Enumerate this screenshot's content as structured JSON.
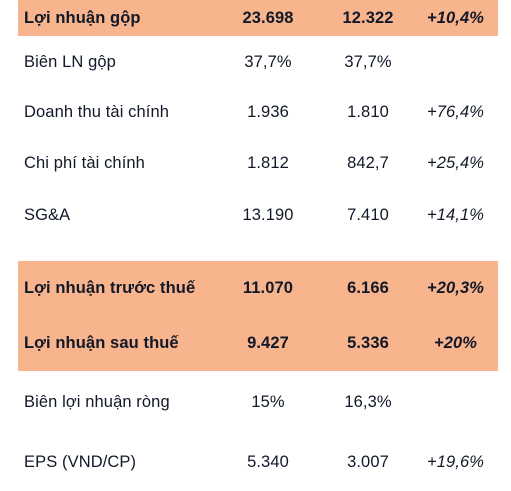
{
  "rows": [
    {
      "label": "Lợi nhuận gộp",
      "v1": "23.698",
      "v2": "12.322",
      "chg": "+10,4%",
      "highlight": true
    },
    {
      "label": "Biên LN gộp",
      "v1": "37,7%",
      "v2": "37,7%",
      "chg": "",
      "highlight": false
    },
    {
      "label": "Doanh thu tài chính",
      "v1": "1.936",
      "v2": "1.810",
      "chg": "+76,4%",
      "highlight": false
    },
    {
      "label": "Chi phí tài chính",
      "v1": "1.812",
      "v2": "842,7",
      "chg": "+25,4%",
      "highlight": false
    },
    {
      "label": "SG&A",
      "v1": "13.190",
      "v2": "7.410",
      "chg": "+14,1%",
      "highlight": false
    },
    {
      "label": "Lợi nhuận trước thuế",
      "v1": "11.070",
      "v2": "6.166",
      "chg": "+20,3%",
      "highlight": true
    },
    {
      "label": "Lợi nhuận sau thuế",
      "v1": "9.427",
      "v2": "5.336",
      "chg": "+20%",
      "highlight": true
    },
    {
      "label": "Biên lợi nhuận ròng",
      "v1": "15%",
      "v2": "16,3%",
      "chg": "",
      "highlight": false
    },
    {
      "label": "EPS (VND/CP)",
      "v1": "5.340",
      "v2": "3.007",
      "chg": "+19,6%",
      "highlight": false
    }
  ],
  "colors": {
    "highlight": "#f8b48c",
    "text": "#111827"
  }
}
